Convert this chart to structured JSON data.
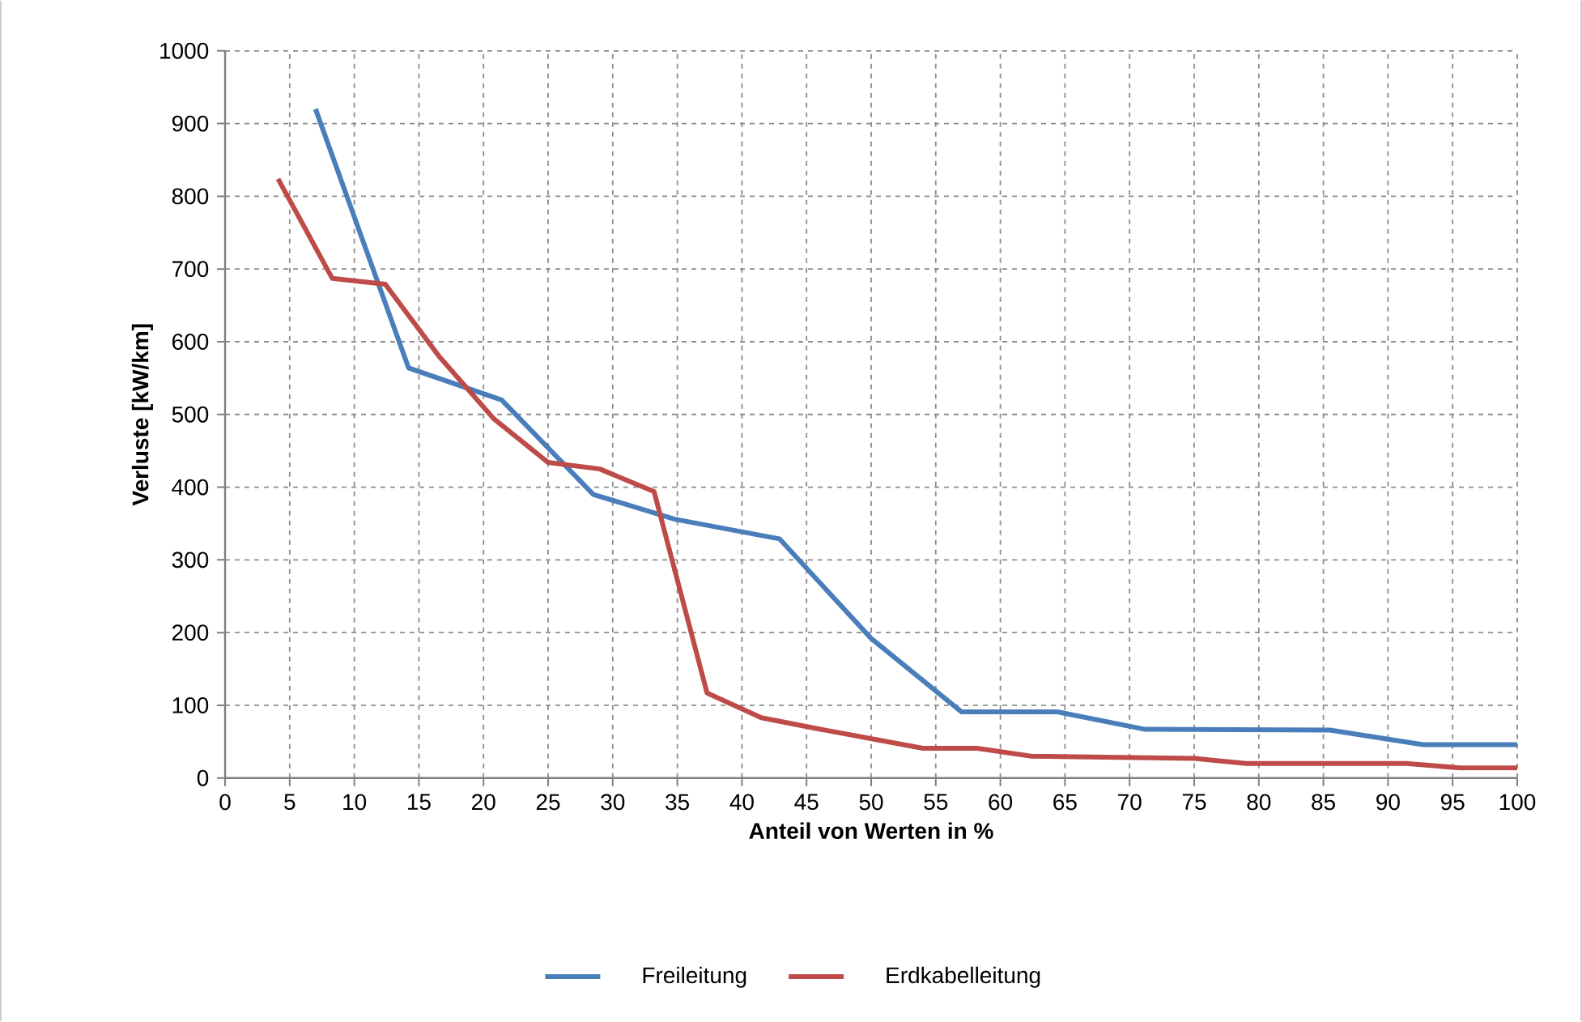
{
  "chart_data": {
    "type": "line",
    "xlabel": "Anteil von Werten  in %",
    "ylabel": "Verluste  [kW/km]",
    "xlim": [
      0,
      100
    ],
    "xticks": [
      0,
      5,
      10,
      15,
      20,
      25,
      30,
      35,
      40,
      45,
      50,
      55,
      60,
      65,
      70,
      75,
      80,
      85,
      90,
      95,
      100
    ],
    "ylim": [
      0,
      1000
    ],
    "yticks": [
      0,
      100,
      200,
      300,
      400,
      500,
      600,
      700,
      800,
      900,
      1000
    ],
    "grid": true,
    "legend": "bottom",
    "marker": "none",
    "line_style": "solid",
    "series": [
      {
        "name": "Freileitung",
        "color": "#4a7ebb",
        "x": [
          7,
          14.2,
          21.4,
          28.5,
          34.8,
          42.9,
          50,
          57,
          64.4,
          71.2,
          85.5,
          92.7,
          100
        ],
        "values": [
          920,
          564,
          520,
          390,
          356,
          329,
          192,
          91,
          91,
          67,
          66,
          46,
          46
        ]
      },
      {
        "name": "Erdkabelleitung",
        "color": "#be4b48",
        "x": [
          4.1,
          8.3,
          12.4,
          16.6,
          20.8,
          25,
          29,
          33.2,
          37.3,
          41.5,
          45.5,
          54,
          58.2,
          62.4,
          75,
          79,
          91.4,
          95.6,
          100
        ],
        "values": [
          824,
          687,
          679,
          579,
          494,
          434,
          425,
          394,
          117,
          83,
          69,
          41,
          41,
          30,
          27,
          20,
          20,
          14,
          14
        ]
      }
    ]
  }
}
